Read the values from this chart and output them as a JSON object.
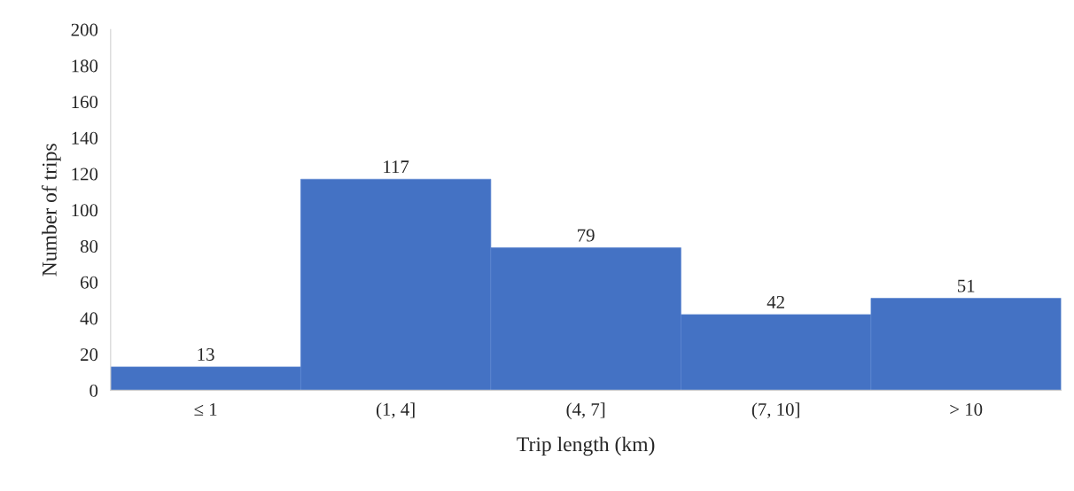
{
  "chart_data": {
    "type": "bar",
    "xlabel": "Trip length (km)",
    "ylabel": "Number of trips",
    "categories": [
      "≤ 1",
      "(1, 4]",
      "(4, 7]",
      "(7, 10]",
      "> 10"
    ],
    "values": [
      13,
      117,
      79,
      42,
      51
    ],
    "color": "#4472c4",
    "ylim": [
      0,
      200
    ],
    "yticks": [
      0,
      20,
      40,
      60,
      80,
      100,
      120,
      140,
      160,
      180,
      200
    ],
    "data_labels": true,
    "grid": false,
    "legend": false
  }
}
